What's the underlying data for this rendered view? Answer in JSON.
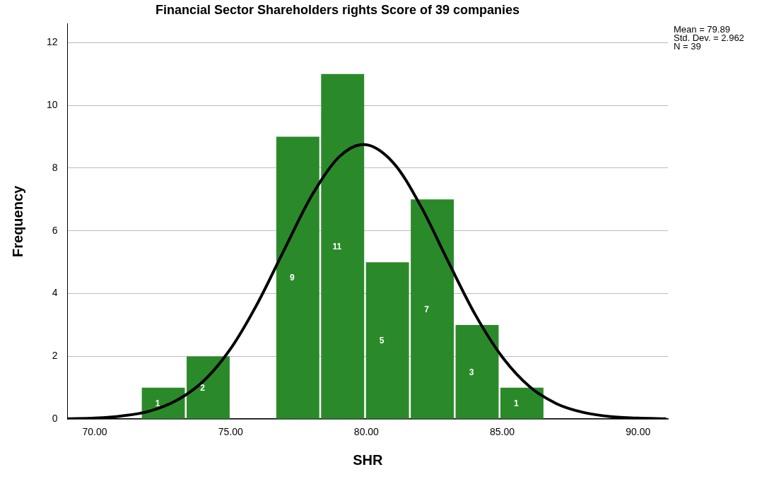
{
  "chart_data": {
    "type": "histogram",
    "title": "Financial Sector Shareholders rights Score of 39 companies",
    "xlabel": "SHR",
    "ylabel": "Frequency",
    "bins": [
      71.7,
      73.35,
      75.0,
      76.65,
      78.3,
      79.95,
      81.6,
      83.25,
      84.9,
      86.55
    ],
    "series": [
      {
        "color": "#2a8a2a",
        "values": [
          1,
          2,
          0,
          9,
          11,
          5,
          7,
          3,
          1
        ],
        "value_labels": [
          "1",
          "2",
          null,
          "9",
          "11",
          "5",
          "7",
          "3",
          "1"
        ]
      },
      {
        "type": "line",
        "color": "#000000",
        "x": [
          69,
          70,
          71,
          72,
          73,
          74,
          75,
          76,
          77,
          78,
          79,
          79.89,
          81,
          82,
          83,
          84,
          85,
          86,
          87,
          88,
          89,
          90,
          91
        ],
        "values": [
          0.01,
          0.03,
          0.1,
          0.25,
          0.59,
          1.21,
          2.24,
          3.7,
          5.44,
          7.14,
          8.36,
          8.75,
          8.16,
          6.79,
          5.04,
          3.34,
          1.98,
          1.04,
          0.49,
          0.21,
          0.08,
          0.03,
          0.01
        ]
      }
    ],
    "xlim": [
      69,
      91.1
    ],
    "xticks": [
      {
        "value": 70,
        "label": "70.00"
      },
      {
        "value": 75,
        "label": "75.00"
      },
      {
        "value": 80,
        "label": "80.00"
      },
      {
        "value": 85,
        "label": "85.00"
      },
      {
        "value": 90,
        "label": "90.00"
      }
    ],
    "ylim": [
      0,
      12.6
    ],
    "yticks": [
      0,
      2,
      4,
      6,
      8,
      10,
      12
    ],
    "grid": "y",
    "legend": false,
    "marker": "none",
    "annotations": [
      "Mean = 79.89",
      "Std. Dev. = 2.962",
      "N = 39"
    ]
  }
}
